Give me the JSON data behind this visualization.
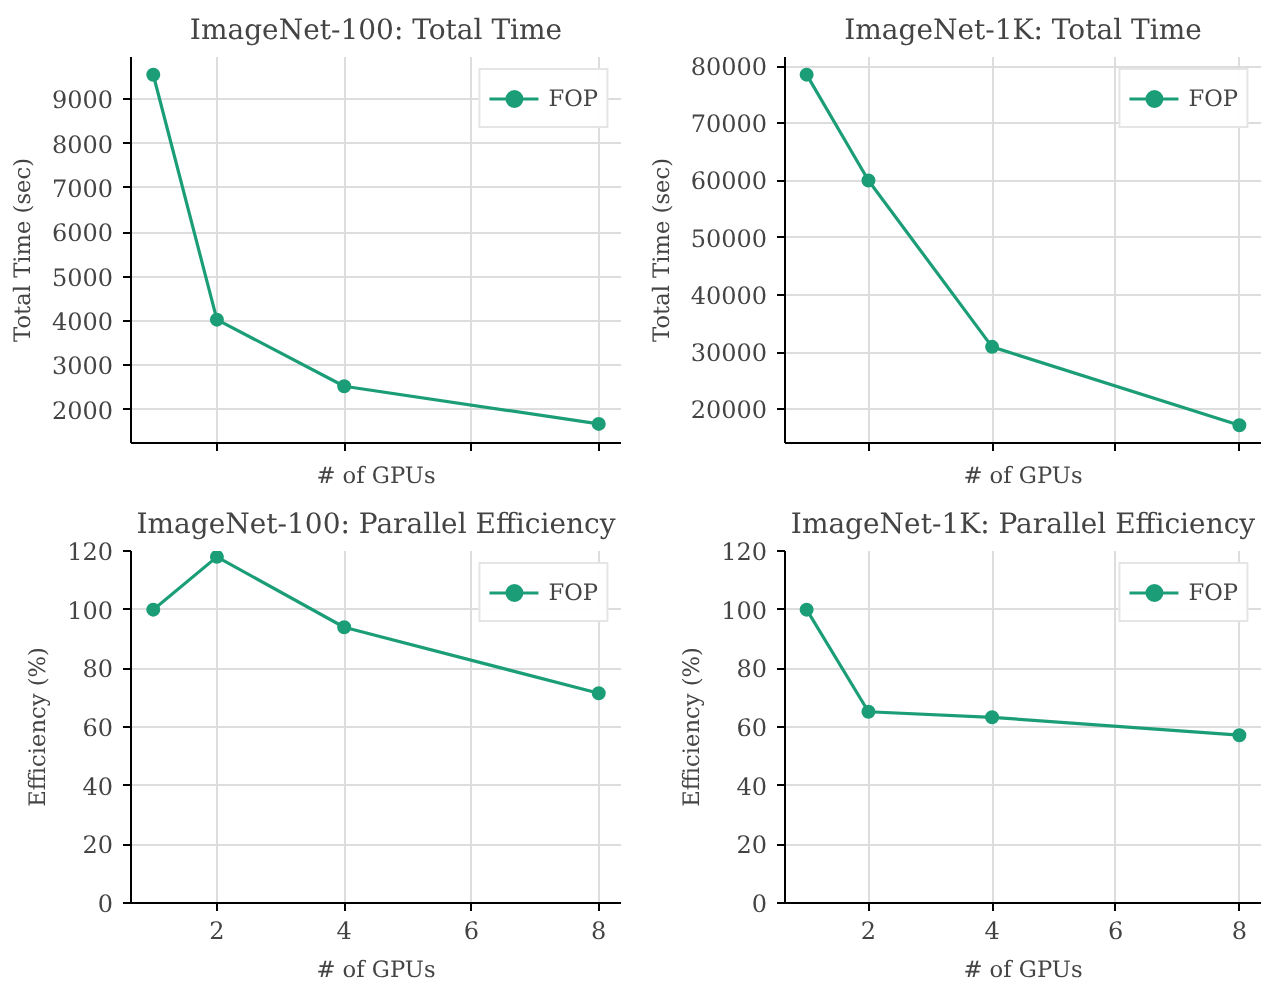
{
  "chart_data": [
    {
      "type": "line",
      "title": "ImageNet-100: Total Time",
      "xlabel": "# of GPUs",
      "ylabel": "Total Time (sec)",
      "x": [
        1,
        2,
        4,
        8
      ],
      "series": [
        {
          "name": "FOP",
          "color": "#1b9e77",
          "values": [
            9550,
            4030,
            2530,
            1680
          ]
        }
      ],
      "xlim": [
        0.65,
        8.35
      ],
      "xticks": [
        {
          "value": 2,
          "label": null
        },
        {
          "value": 4,
          "label": null
        },
        {
          "value": 6,
          "label": null
        },
        {
          "value": 8,
          "label": null
        }
      ],
      "ylim": [
        1250,
        9950
      ],
      "yticks": [
        2000,
        3000,
        4000,
        5000,
        6000,
        7000,
        8000,
        9000
      ],
      "tick_labels": "y",
      "grid": true,
      "legend": "top right",
      "marker": "circle",
      "line_style": "solid"
    },
    {
      "type": "line",
      "title": "ImageNet-1K: Total Time",
      "xlabel": "# of GPUs",
      "ylabel": "Total Time (sec)",
      "x": [
        1,
        2,
        4,
        8
      ],
      "series": [
        {
          "name": "FOP",
          "color": "#1b9e77",
          "values": [
            78500,
            60000,
            30900,
            17200
          ]
        }
      ],
      "xlim": [
        0.65,
        8.35
      ],
      "xticks": [
        {
          "value": 2,
          "label": null
        },
        {
          "value": 4,
          "label": null
        },
        {
          "value": 6,
          "label": null
        },
        {
          "value": 8,
          "label": null
        }
      ],
      "ylim": [
        14090,
        81590
      ],
      "yticks": [
        20000,
        30000,
        40000,
        50000,
        60000,
        70000,
        80000
      ],
      "tick_labels": "y",
      "grid": true,
      "legend": "top right",
      "marker": "circle",
      "line_style": "solid"
    },
    {
      "type": "line",
      "title": "ImageNet-100: Parallel Efficiency",
      "xlabel": "# of GPUs",
      "ylabel": "Efficiency (%)",
      "x": [
        1,
        2,
        4,
        8
      ],
      "series": [
        {
          "name": "FOP",
          "color": "#1b9e77",
          "values": [
            100,
            118,
            94,
            71.5
          ]
        }
      ],
      "xlim": [
        0.65,
        8.35
      ],
      "xticks": [
        2,
        4,
        6,
        8
      ],
      "ylim": [
        0,
        120
      ],
      "yticks": [
        0,
        20,
        40,
        60,
        80,
        100,
        120
      ],
      "grid": true,
      "legend": "top right",
      "marker": "circle",
      "line_style": "solid"
    },
    {
      "type": "line",
      "title": "ImageNet-1K: Parallel Efficiency",
      "xlabel": "# of GPUs",
      "ylabel": "Efficiency (%)",
      "x": [
        1,
        2,
        4,
        8
      ],
      "series": [
        {
          "name": "FOP",
          "color": "#1b9e77",
          "values": [
            100,
            65.2,
            63.3,
            57.2
          ]
        }
      ],
      "xlim": [
        0.65,
        8.35
      ],
      "xticks": [
        2,
        4,
        6,
        8
      ],
      "ylim": [
        0,
        120
      ],
      "yticks": [
        0,
        20,
        40,
        60,
        80,
        100,
        120
      ],
      "grid": true,
      "legend": "top right",
      "marker": "circle",
      "line_style": "solid"
    }
  ]
}
